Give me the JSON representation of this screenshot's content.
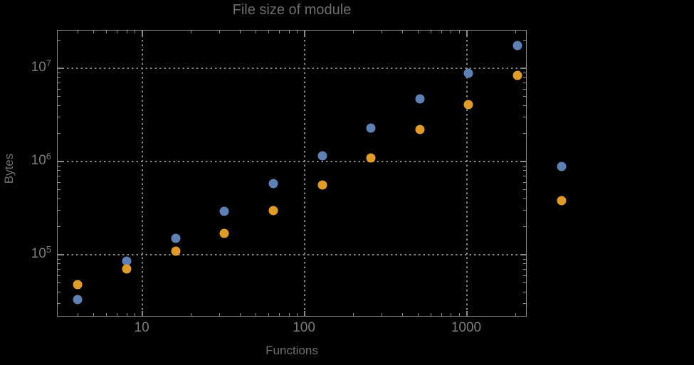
{
  "chart_data": {
    "type": "scatter",
    "title": "File size of module",
    "xlabel": "Functions",
    "ylabel": "Bytes",
    "x_scale": "log",
    "y_scale": "log",
    "xlim": [
      3.0,
      2360
    ],
    "ylim": [
      21300,
      25400000
    ],
    "grid": "dotted",
    "frame": true,
    "background": "#000000",
    "frame_color": "#8a8a8a",
    "grid_color": "#868686",
    "text_color": "#6f6f6f",
    "x_ticks": [
      {
        "value": 10,
        "label": "10"
      },
      {
        "value": 100,
        "label": "100"
      },
      {
        "value": 1000,
        "label": "1000"
      }
    ],
    "y_ticks": [
      {
        "value": 100000,
        "base": "10",
        "exp": "5"
      },
      {
        "value": 1000000,
        "base": "10",
        "exp": "6"
      },
      {
        "value": 10000000,
        "base": "10",
        "exp": "7"
      }
    ],
    "series": [
      {
        "name": "series-blue",
        "color": "#5e81b5",
        "points": [
          [
            4,
            33000
          ],
          [
            8,
            85000
          ],
          [
            16,
            150000
          ],
          [
            32,
            290000
          ],
          [
            64,
            580000
          ],
          [
            128,
            1150000
          ],
          [
            256,
            2300000
          ],
          [
            512,
            4700000
          ],
          [
            1024,
            8800000
          ],
          [
            2048,
            17600000
          ]
        ]
      },
      {
        "name": "series-orange",
        "color": "#e09c24",
        "points": [
          [
            4,
            48000
          ],
          [
            8,
            70000
          ],
          [
            16,
            110000
          ],
          [
            32,
            170000
          ],
          [
            64,
            300000
          ],
          [
            128,
            560000
          ],
          [
            256,
            1100000
          ],
          [
            512,
            2200000
          ],
          [
            1024,
            4100000
          ],
          [
            2048,
            8400000
          ]
        ]
      }
    ],
    "legend": {
      "position": "right-outside",
      "labels_visible_text": "",
      "markers": [
        {
          "series": "series-blue",
          "color": "#5e81b5"
        },
        {
          "series": "series-orange",
          "color": "#e09c24"
        }
      ]
    }
  }
}
